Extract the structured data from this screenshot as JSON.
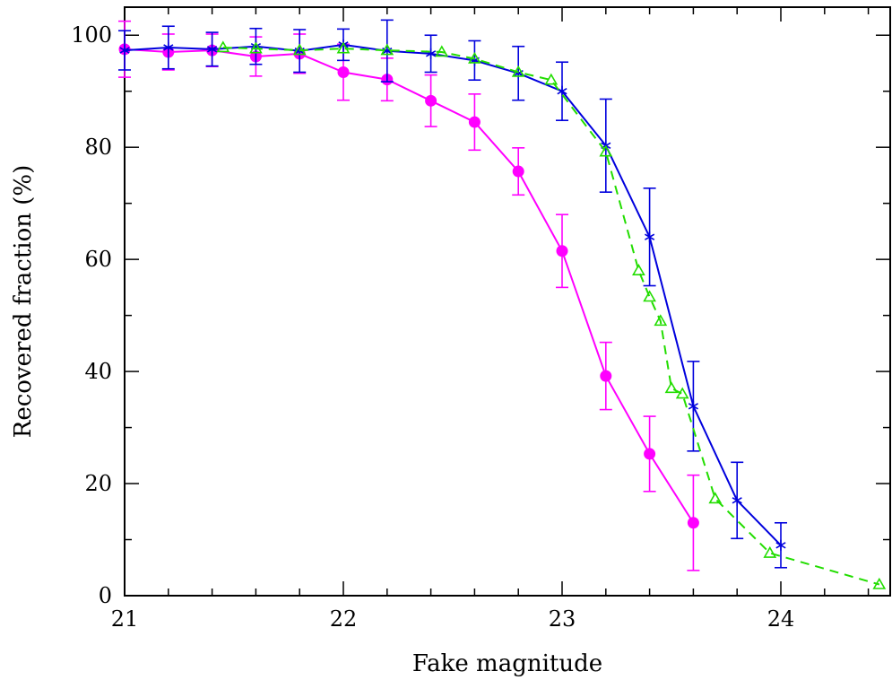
{
  "chart_data": {
    "type": "line",
    "title": "",
    "xlabel": "Fake magnitude",
    "ylabel": "Recovered fraction (%)",
    "xlim": [
      21,
      24.5
    ],
    "ylim": [
      0,
      105
    ],
    "xticks": [
      "21",
      "22",
      "23",
      "24"
    ],
    "yticks": [
      "0",
      "20",
      "40",
      "60",
      "80",
      "100"
    ],
    "grid": false,
    "legend": "none",
    "series": [
      {
        "color": "#ff00ff",
        "marker": "circle",
        "linestyle": "solid",
        "x": [
          21.0,
          21.2,
          21.4,
          21.6,
          21.8,
          22.0,
          22.2,
          22.4,
          22.6,
          22.8,
          23.0,
          23.2,
          23.4,
          23.6
        ],
        "y": [
          97.5,
          97.0,
          97.3,
          96.2,
          96.7,
          93.4,
          92.1,
          88.3,
          84.5,
          75.7,
          61.5,
          39.2,
          25.3,
          13.0
        ],
        "err": [
          5.0,
          3.2,
          2.9,
          3.5,
          3.5,
          5.0,
          3.8,
          4.6,
          5.0,
          4.2,
          6.5,
          6.0,
          6.7,
          8.5
        ]
      },
      {
        "color": "#0000dd",
        "marker": "star",
        "linestyle": "solid",
        "x": [
          21.0,
          21.2,
          21.4,
          21.6,
          21.8,
          22.0,
          22.2,
          22.4,
          22.6,
          22.8,
          23.0,
          23.2,
          23.4,
          23.6,
          23.8,
          24.0
        ],
        "y": [
          97.3,
          97.8,
          97.5,
          98.0,
          97.2,
          98.3,
          97.2,
          96.7,
          95.5,
          93.2,
          90.0,
          80.3,
          64.0,
          33.8,
          17.0,
          9.0
        ],
        "err": [
          3.5,
          3.8,
          3.0,
          3.2,
          3.8,
          2.8,
          5.5,
          3.3,
          3.5,
          4.8,
          5.2,
          8.3,
          8.7,
          8.0,
          6.8,
          4.0
        ]
      },
      {
        "color": "#22dd00",
        "marker": "triangle",
        "linestyle": "dashed",
        "x": [
          21.45,
          21.6,
          21.8,
          22.0,
          22.2,
          22.45,
          22.6,
          22.8,
          22.95,
          23.2,
          23.35,
          23.4,
          23.45,
          23.5,
          23.55,
          23.7,
          23.95,
          24.45
        ],
        "y": [
          97.8,
          97.6,
          97.3,
          97.6,
          97.3,
          97.0,
          95.8,
          93.4,
          92.0,
          79.2,
          58.0,
          53.3,
          49.0,
          37.0,
          36.0,
          17.3,
          7.6,
          2.0
        ],
        "err": []
      }
    ]
  }
}
